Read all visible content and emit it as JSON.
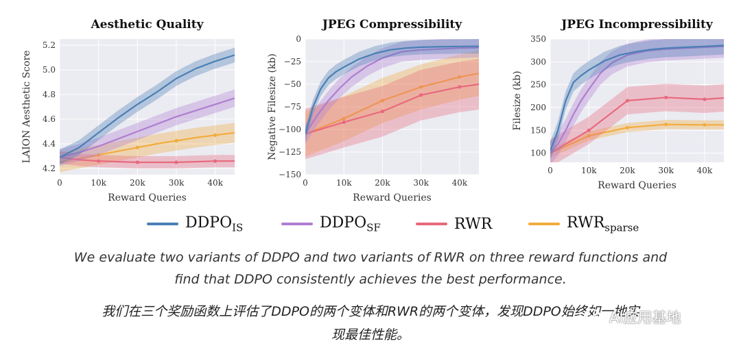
{
  "chart_data": [
    {
      "type": "line",
      "title": "Aesthetic Quality",
      "xlabel": "Reward Queries",
      "ylabel": "LAION Aesthetic Score",
      "xlim": [
        0,
        45000
      ],
      "ylim": [
        4.15,
        5.25
      ],
      "xticks": [
        0,
        10000,
        20000,
        30000,
        40000
      ],
      "xtick_labels": [
        "0",
        "10k",
        "20k",
        "30k",
        "40k"
      ],
      "yticks": [
        4.2,
        4.4,
        4.6,
        4.8,
        5.0,
        5.2
      ],
      "ytick_labels": [
        "4.2",
        "4.4",
        "4.6",
        "4.8",
        "5.0",
        "5.2"
      ],
      "grid": true,
      "series": [
        {
          "name": "DDPO_IS",
          "x": [
            0,
            5000,
            10000,
            15000,
            20000,
            25000,
            30000,
            35000,
            40000,
            45000
          ],
          "y": [
            4.29,
            4.37,
            4.49,
            4.61,
            4.72,
            4.82,
            4.93,
            5.01,
            5.07,
            5.12
          ],
          "band": 0.06
        },
        {
          "name": "DDPO_SF",
          "x": [
            0,
            5000,
            10000,
            15000,
            20000,
            25000,
            30000,
            35000,
            40000,
            45000
          ],
          "y": [
            4.29,
            4.33,
            4.38,
            4.44,
            4.5,
            4.56,
            4.62,
            4.67,
            4.72,
            4.77
          ],
          "band": 0.07
        },
        {
          "name": "RWR",
          "x": [
            0,
            5000,
            10000,
            15000,
            20000,
            25000,
            30000,
            35000,
            40000,
            45000
          ],
          "y": [
            4.29,
            4.27,
            4.26,
            4.255,
            4.25,
            4.25,
            4.25,
            4.255,
            4.26,
            4.26
          ],
          "markers_x": [
            10000,
            20000,
            30000,
            40000
          ],
          "markers_y": [
            4.26,
            4.25,
            4.25,
            4.26
          ],
          "band": 0.05
        },
        {
          "name": "RWR_sparse",
          "x": [
            0,
            5000,
            10000,
            15000,
            20000,
            25000,
            30000,
            35000,
            40000,
            45000
          ],
          "y": [
            4.25,
            4.28,
            4.31,
            4.34,
            4.37,
            4.4,
            4.425,
            4.45,
            4.47,
            4.49
          ],
          "markers_x": [
            10000,
            20000,
            30000,
            40000
          ],
          "markers_y": [
            4.31,
            4.37,
            4.425,
            4.47
          ],
          "band": 0.08
        }
      ]
    },
    {
      "type": "line",
      "title": "JPEG Compressibility",
      "xlabel": "Reward Queries",
      "ylabel": "Negative Filesize (kb)",
      "xlim": [
        0,
        45000
      ],
      "ylim": [
        -150,
        0
      ],
      "xticks": [
        0,
        10000,
        20000,
        30000,
        40000
      ],
      "xtick_labels": [
        "0",
        "10k",
        "20k",
        "30k",
        "40k"
      ],
      "yticks": [
        -150,
        -125,
        -100,
        -75,
        -50,
        -25,
        0
      ],
      "ytick_labels": [
        "−150",
        "−125",
        "−100",
        "−75",
        "−50",
        "−25",
        "0"
      ],
      "grid": true,
      "series": [
        {
          "name": "DDPO_IS",
          "x": [
            0,
            2000,
            4000,
            6000,
            8000,
            10000,
            14000,
            18000,
            22000,
            26000,
            30000,
            35000,
            40000,
            45000
          ],
          "y": [
            -105,
            -75,
            -55,
            -43,
            -36,
            -31,
            -22,
            -16,
            -12,
            -10,
            -9,
            -8.5,
            -8.2,
            -8
          ],
          "band": 8
        },
        {
          "name": "DDPO_SF",
          "x": [
            0,
            3000,
            6000,
            9000,
            12000,
            16000,
            20000,
            25000,
            30000,
            35000,
            40000,
            45000
          ],
          "y": [
            -105,
            -85,
            -68,
            -54,
            -42,
            -30,
            -21,
            -14,
            -12,
            -11,
            -10,
            -9.5
          ],
          "band": 11
        },
        {
          "name": "RWR",
          "x": [
            0,
            10000,
            20000,
            30000,
            40000,
            45000
          ],
          "y": [
            -105,
            -92,
            -80,
            -62,
            -53,
            -50
          ],
          "markers_x": [
            10000,
            20000,
            30000,
            40000
          ],
          "markers_y": [
            -92,
            -80,
            -62,
            -53
          ],
          "band": 28
        },
        {
          "name": "RWR_sparse",
          "x": [
            0,
            10000,
            20000,
            30000,
            40000,
            45000
          ],
          "y": [
            -105,
            -88,
            -68,
            -53,
            -42,
            -38
          ],
          "markers_x": [
            10000,
            20000,
            30000,
            40000
          ],
          "markers_y": [
            -88,
            -68,
            -53,
            -42
          ],
          "band": 25
        }
      ]
    },
    {
      "type": "line",
      "title": "JPEG Incompressibility",
      "xlabel": "Reward Queries",
      "ylabel": "Filesize (kb)",
      "xlim": [
        0,
        45000
      ],
      "ylim": [
        80,
        350
      ],
      "xticks": [
        0,
        10000,
        20000,
        30000,
        40000
      ],
      "xtick_labels": [
        "0",
        "10k",
        "20k",
        "30k",
        "40k"
      ],
      "yticks": [
        100,
        150,
        200,
        250,
        300,
        350
      ],
      "ytick_labels": [
        "100",
        "150",
        "200",
        "250",
        "300",
        "350"
      ],
      "grid": true,
      "series": [
        {
          "name": "DDPO_IS",
          "x": [
            0,
            2000,
            4000,
            6000,
            8000,
            10000,
            14000,
            18000,
            22000,
            26000,
            30000,
            35000,
            40000,
            45000
          ],
          "y": [
            105,
            150,
            215,
            255,
            270,
            282,
            302,
            315,
            322,
            327,
            330,
            332,
            334,
            336
          ],
          "band": 20
        },
        {
          "name": "DDPO_SF",
          "x": [
            0,
            2000,
            4000,
            6000,
            8000,
            10000,
            13000,
            16000,
            20000,
            25000,
            30000,
            35000,
            40000,
            45000
          ],
          "y": [
            100,
            120,
            150,
            185,
            215,
            240,
            275,
            298,
            315,
            324,
            328,
            330,
            332,
            334
          ],
          "band": 25
        },
        {
          "name": "RWR",
          "x": [
            0,
            10000,
            20000,
            30000,
            40000,
            45000
          ],
          "y": [
            100,
            150,
            215,
            222,
            218,
            221
          ],
          "markers_x": [
            10000,
            20000,
            30000,
            40000
          ],
          "markers_y": [
            150,
            215,
            222,
            218
          ],
          "band": 30
        },
        {
          "name": "RWR_sparse",
          "x": [
            0,
            10000,
            20000,
            30000,
            40000,
            45000
          ],
          "y": [
            100,
            138,
            156,
            163,
            162,
            162
          ],
          "markers_x": [
            10000,
            20000,
            30000,
            40000
          ],
          "markers_y": [
            138,
            156,
            163,
            162
          ],
          "band": 10
        }
      ]
    }
  ],
  "legend": {
    "items": [
      {
        "base": "DDPO",
        "sub": "IS",
        "color": "#4a7fb5"
      },
      {
        "base": "DDPO",
        "sub": "SF",
        "color": "#b07dd0"
      },
      {
        "base": "RWR",
        "sub": "",
        "color": "#e8697d"
      },
      {
        "base": "RWR",
        "sub": "sparse",
        "color": "#f2ac3e"
      }
    ]
  },
  "colors": {
    "DDPO_IS": "#4a7fb5",
    "DDPO_SF": "#b07dd0",
    "RWR": "#e8697d",
    "RWR_sparse": "#f2ac3e",
    "plot_bg": "#ebebf2",
    "grid": "#ffffff"
  },
  "caption_en": {
    "line1": "We evaluate two variants of DDPO and two variants of RWR on three reward functions and",
    "line2": "find that DDPO consistently achieves the best performance."
  },
  "caption_zh": {
    "line1": "我们在三个奖励函数上评估了DDPO的两个变体和RWR的两个变体，发现DDPO始终如一地实",
    "line2": "现最佳性能。"
  },
  "watermark": {
    "text": "AI应用基地",
    "icon": "wechat-icon"
  }
}
